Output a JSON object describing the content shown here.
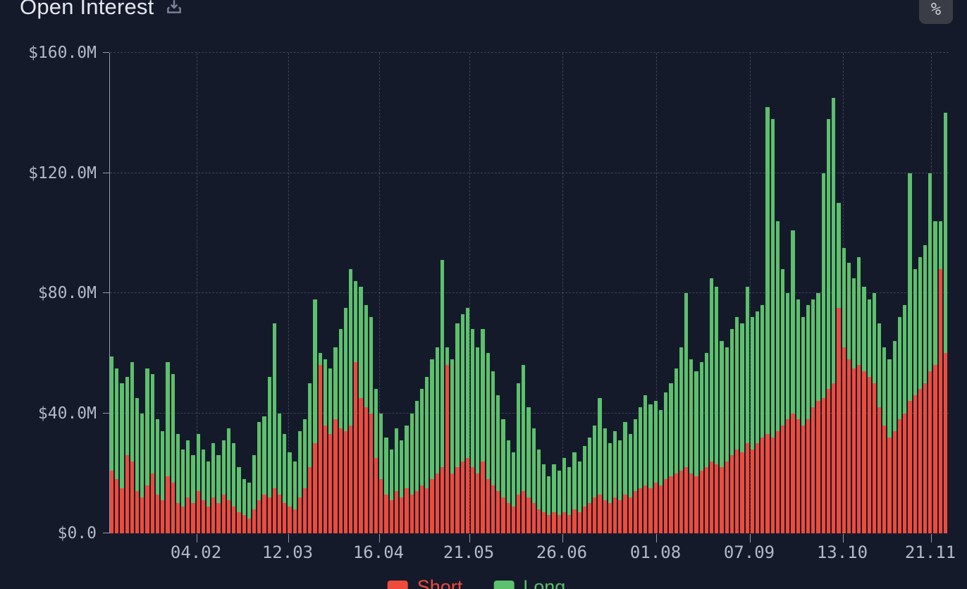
{
  "header": {
    "title": "Open Interest",
    "percent_button_label": "%"
  },
  "legend": [
    {
      "label": "Short",
      "color": "#ee4b3c"
    },
    {
      "label": "Long",
      "color": "#5cc06c"
    }
  ],
  "colors": {
    "background": "#151a2b",
    "axis_line": "#aab2c8",
    "grid_line": "#3c445a",
    "tick_text": "#b3b9c9",
    "title_text": "#e4e7ef",
    "short_red": "#ee4b3c",
    "long_green": "#5cc06c",
    "percent_button_bg": "#3a3d46"
  },
  "chart_data": {
    "type": "bar",
    "stacked": true,
    "title": "Open Interest",
    "unit": "USD millions",
    "grid": "dashed",
    "legend_position": "bottom",
    "ylim": [
      0,
      160
    ],
    "y_ticks": [
      {
        "label": "$0.0",
        "value": 0
      },
      {
        "label": "$40.0M",
        "value": 40
      },
      {
        "label": "$80.0M",
        "value": 80
      },
      {
        "label": "$120.0M",
        "value": 120
      },
      {
        "label": "$160.0M",
        "value": 160
      }
    ],
    "x_ticks": [
      {
        "label": "04.02",
        "pos": 0.1034
      },
      {
        "label": "12.03",
        "pos": 0.2126
      },
      {
        "label": "16.04",
        "pos": 0.321
      },
      {
        "label": "21.05",
        "pos": 0.4286
      },
      {
        "label": "26.06",
        "pos": 0.5395
      },
      {
        "label": "01.08",
        "pos": 0.6513
      },
      {
        "label": "07.09",
        "pos": 0.763
      },
      {
        "label": "13.10",
        "pos": 0.8739
      },
      {
        "label": "21.11",
        "pos": 0.979
      }
    ],
    "series": [
      {
        "name": "Short",
        "color": "#ee4b3c",
        "values": [
          21,
          18,
          15,
          26,
          24,
          14,
          12,
          16,
          20,
          13,
          11,
          19,
          17,
          10,
          9,
          12,
          10,
          14,
          11,
          9,
          12,
          10,
          13,
          11,
          9,
          7,
          6,
          5,
          8,
          11,
          13,
          12,
          15,
          13,
          10,
          9,
          8,
          12,
          15,
          22,
          30,
          56,
          36,
          33,
          38,
          35,
          34,
          36,
          57,
          45,
          42,
          40,
          25,
          18,
          13,
          11,
          14,
          12,
          15,
          13,
          14,
          16,
          15,
          18,
          20,
          22,
          56,
          20,
          22,
          24,
          25,
          22,
          20,
          24,
          18,
          16,
          14,
          12,
          10,
          9,
          13,
          14,
          12,
          10,
          8,
          7,
          6,
          7,
          6,
          7,
          6,
          8,
          7,
          9,
          10,
          12,
          13,
          11,
          10,
          12,
          11,
          13,
          12,
          14,
          15,
          16,
          15,
          17,
          16,
          18,
          19,
          20,
          21,
          22,
          20,
          19,
          21,
          22,
          24,
          23,
          22,
          24,
          26,
          28,
          27,
          30,
          28,
          30,
          32,
          33,
          32,
          34,
          36,
          38,
          40,
          38,
          36,
          38,
          42,
          44,
          45,
          48,
          50,
          75,
          62,
          58,
          55,
          56,
          54,
          52,
          50,
          42,
          36,
          32,
          34,
          38,
          40,
          44,
          46,
          48,
          50,
          54,
          56,
          88,
          60
        ]
      },
      {
        "name": "Long",
        "color": "#5cc06c",
        "values": [
          38,
          37,
          35,
          26,
          33,
          31,
          28,
          39,
          33,
          25,
          23,
          38,
          36,
          23,
          19,
          19,
          16,
          19,
          17,
          15,
          18,
          16,
          18,
          24,
          21,
          15,
          12,
          12,
          18,
          26,
          26,
          40,
          55,
          27,
          23,
          18,
          16,
          22,
          23,
          28,
          48,
          4,
          22,
          22,
          24,
          33,
          41,
          52,
          27,
          37,
          34,
          32,
          23,
          22,
          19,
          17,
          21,
          19,
          21,
          27,
          30,
          32,
          37,
          40,
          42,
          69,
          6,
          38,
          48,
          49,
          50,
          46,
          42,
          44,
          42,
          38,
          32,
          26,
          21,
          18,
          37,
          42,
          30,
          25,
          20,
          16,
          13,
          16,
          15,
          18,
          16,
          19,
          17,
          20,
          22,
          24,
          32,
          24,
          20,
          22,
          20,
          24,
          21,
          24,
          27,
          30,
          28,
          27,
          25,
          29,
          31,
          35,
          41,
          58,
          38,
          35,
          36,
          38,
          61,
          59,
          42,
          38,
          42,
          44,
          43,
          52,
          44,
          44,
          44,
          109,
          106,
          70,
          52,
          42,
          61,
          40,
          36,
          38,
          36,
          36,
          75,
          90,
          95,
          35,
          33,
          32,
          30,
          36,
          28,
          26,
          30,
          28,
          26,
          26,
          30,
          34,
          36,
          76,
          42,
          44,
          46,
          66,
          48,
          16,
          80
        ]
      }
    ]
  }
}
